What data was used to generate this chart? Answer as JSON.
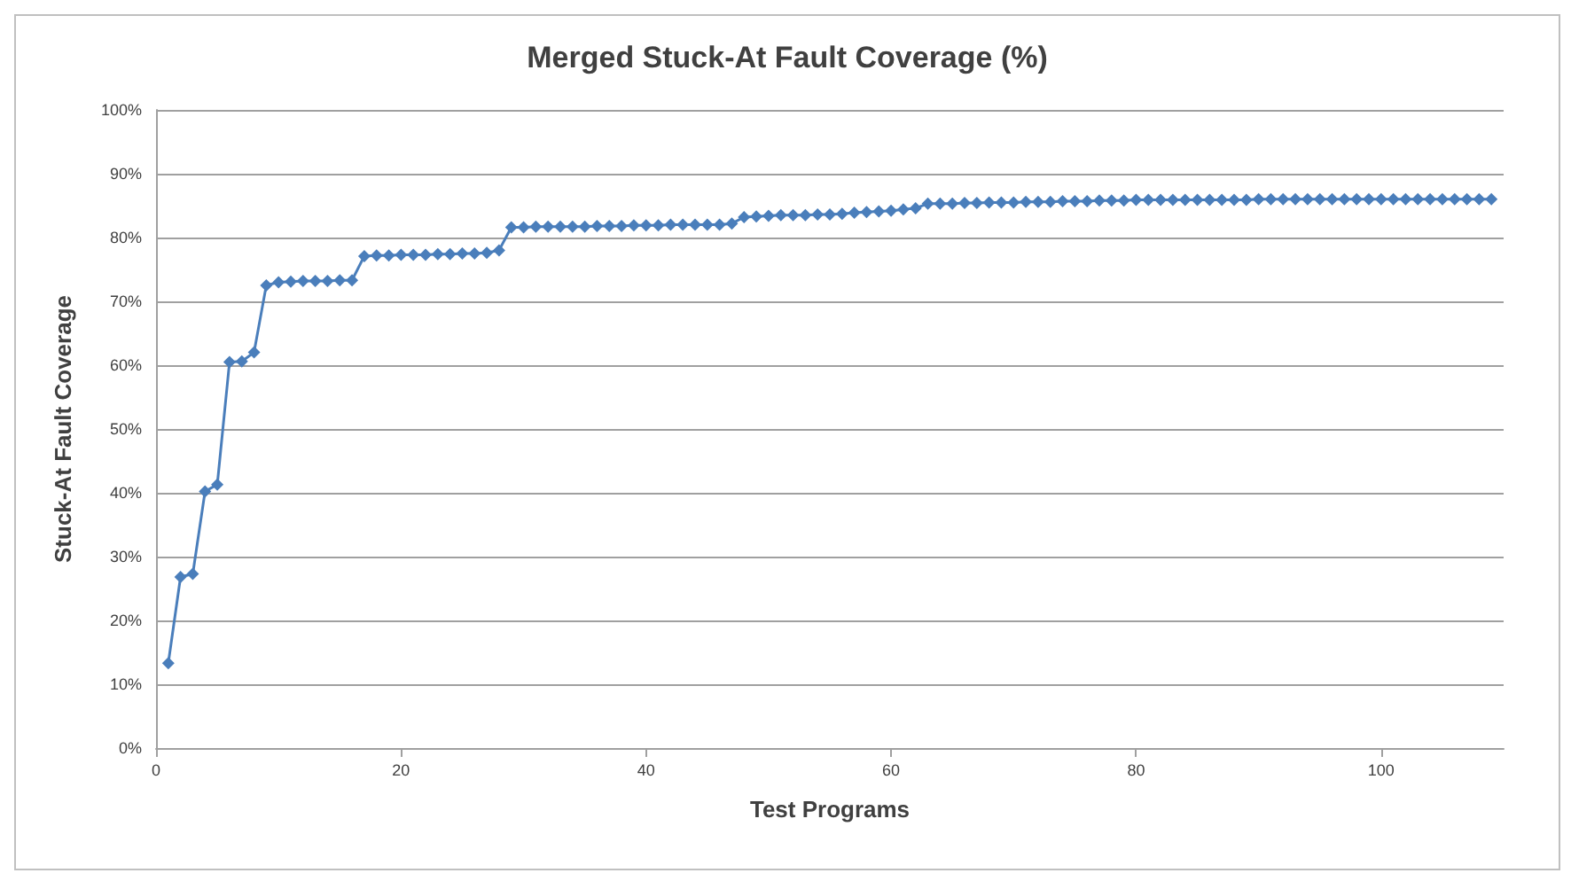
{
  "chart_data": {
    "type": "line",
    "title": "Merged Stuck-At Fault Coverage (%)",
    "xlabel": "Test Programs",
    "ylabel": "Stuck-At Fault Coverage",
    "x": [
      1,
      2,
      3,
      4,
      5,
      6,
      7,
      8,
      9,
      10,
      11,
      12,
      13,
      14,
      15,
      16,
      17,
      18,
      19,
      20,
      21,
      22,
      23,
      24,
      25,
      26,
      27,
      28,
      29,
      30,
      31,
      32,
      33,
      34,
      35,
      36,
      37,
      38,
      39,
      40,
      41,
      42,
      43,
      44,
      45,
      46,
      47,
      48,
      49,
      50,
      51,
      52,
      53,
      54,
      55,
      56,
      57,
      58,
      59,
      60,
      61,
      62,
      63,
      64,
      65,
      66,
      67,
      68,
      69,
      70,
      71,
      72,
      73,
      74,
      75,
      76,
      77,
      78,
      79,
      80,
      81,
      82,
      83,
      84,
      85,
      86,
      87,
      88,
      89,
      90,
      91,
      92,
      93,
      94,
      95,
      96,
      97,
      98,
      99,
      100,
      101,
      102,
      103,
      104,
      105,
      106,
      107,
      108,
      109
    ],
    "series": [
      {
        "color": "#4a7ebb",
        "values": [
          13.3,
          26.8,
          27.3,
          40.2,
          41.3,
          60.5,
          60.6,
          62.0,
          72.5,
          73.0,
          73.1,
          73.2,
          73.2,
          73.2,
          73.3,
          73.3,
          77.1,
          77.2,
          77.2,
          77.3,
          77.3,
          77.3,
          77.4,
          77.4,
          77.5,
          77.5,
          77.6,
          78.0,
          81.6,
          81.6,
          81.7,
          81.7,
          81.7,
          81.7,
          81.7,
          81.8,
          81.8,
          81.8,
          81.9,
          81.9,
          81.9,
          82.0,
          82.0,
          82.0,
          82.0,
          82.0,
          82.2,
          83.2,
          83.3,
          83.4,
          83.5,
          83.5,
          83.5,
          83.6,
          83.6,
          83.7,
          83.9,
          84.0,
          84.1,
          84.2,
          84.4,
          84.6,
          85.3,
          85.3,
          85.3,
          85.4,
          85.4,
          85.5,
          85.5,
          85.5,
          85.6,
          85.6,
          85.6,
          85.7,
          85.7,
          85.7,
          85.8,
          85.8,
          85.8,
          85.9,
          85.9,
          85.9,
          85.9,
          85.9,
          85.9,
          85.9,
          85.9,
          85.9,
          85.9,
          86.0,
          86.0,
          86.0,
          86.0,
          86.0,
          86.0,
          86.0,
          86.0,
          86.0,
          86.0,
          86.0,
          86.0,
          86.0,
          86.0,
          86.0,
          86.0,
          86.0,
          86.0,
          86.0,
          86.0
        ]
      }
    ],
    "xlim": [
      0,
      110
    ],
    "xticks": [
      0,
      20,
      40,
      60,
      80,
      100
    ],
    "ylim": [
      0,
      100
    ],
    "yticks": [
      {
        "value": 0,
        "label": "0%"
      },
      {
        "value": 10,
        "label": "10%"
      },
      {
        "value": 20,
        "label": "20%"
      },
      {
        "value": 30,
        "label": "30%"
      },
      {
        "value": 40,
        "label": "40%"
      },
      {
        "value": 50,
        "label": "50%"
      },
      {
        "value": 60,
        "label": "60%"
      },
      {
        "value": 70,
        "label": "70%"
      },
      {
        "value": 80,
        "label": "80%"
      },
      {
        "value": 90,
        "label": "90%"
      },
      {
        "value": 100,
        "label": "100%"
      }
    ],
    "grid": "y",
    "marker": "diamond",
    "line_style": "solid"
  }
}
